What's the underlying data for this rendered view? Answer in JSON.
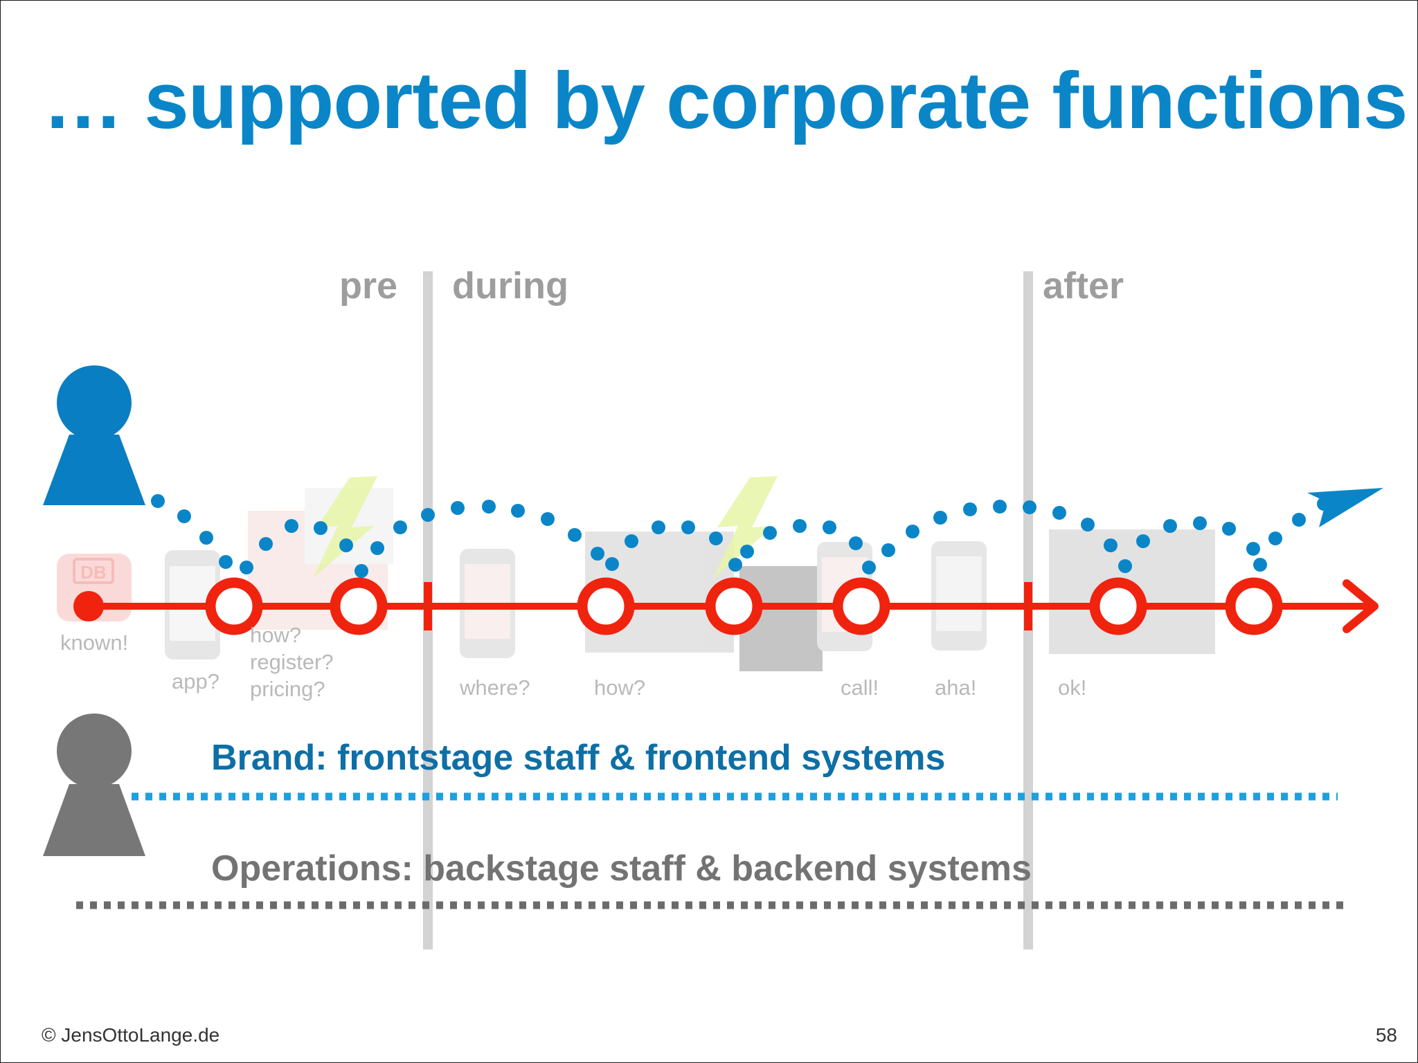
{
  "slide": {
    "title": "… supported by corporate functions",
    "phases": {
      "pre": "pre",
      "during": "during",
      "after": "after"
    },
    "touchpoint_labels": {
      "known": "known!",
      "app": "app?",
      "how_register_pricing": "how?\nregister?\npricing?",
      "where": "where?",
      "how": "how?",
      "call": "call!",
      "aha": "aha!",
      "ok": "ok!"
    },
    "app_icon_text": "DB",
    "layers": {
      "brand": "Brand: frontstage staff & frontend systems",
      "operations": "Operations: backstage staff & backend systems"
    },
    "footer": {
      "copyright": "© JensOttoLange.de",
      "page_number": "58"
    },
    "colors": {
      "title": "#0a86c8",
      "customer": "#0a7ec2",
      "journey": "#f0230f",
      "employee": "#777777",
      "phase_divider": "#d3d3d3",
      "brand_text": "#0e6fa6",
      "brand_line": "#1e9fe0",
      "ops_line": "#6b6b6b"
    },
    "icons": [
      "customer-figure-icon",
      "employee-figure-icon",
      "lightning-icon",
      "smartphone-icon",
      "paper-plane-arrow-icon",
      "db-app-icon"
    ]
  }
}
